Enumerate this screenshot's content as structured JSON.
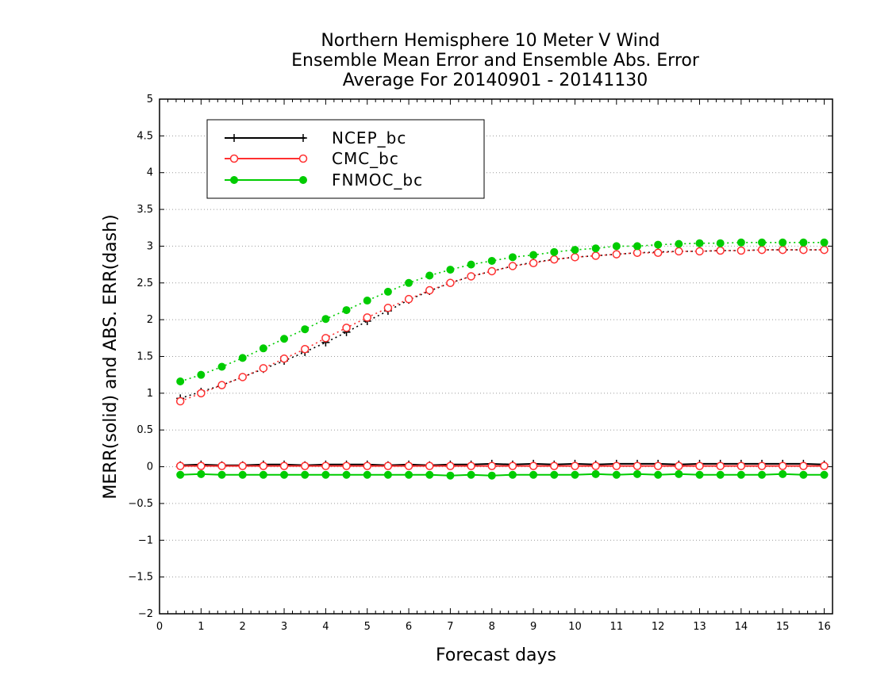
{
  "chart_data": {
    "type": "line",
    "title_lines": [
      "Northern Hemisphere 10 Meter V Wind",
      "Ensemble Mean Error and Ensemble Abs. Error",
      "Average For 20140901 - 20141130"
    ],
    "xlabel": "Forecast days",
    "ylabel": "MERR(solid) and ABS. ERR(dash)",
    "xlim": [
      0,
      16.2
    ],
    "ylim": [
      -2,
      5
    ],
    "x_ticks": [
      "0",
      "1",
      "2",
      "3",
      "4",
      "5",
      "6",
      "7",
      "8",
      "9",
      "10",
      "11",
      "12",
      "13",
      "14",
      "15",
      "16"
    ],
    "y_ticks": [
      "5",
      "4.5",
      "4",
      "3.5",
      "3",
      "2.5",
      "2",
      "1.5",
      "1",
      "0.5",
      "0",
      "-0.5",
      "-1",
      "-1.5",
      "-2"
    ],
    "grid": "horizontal dotted",
    "legend_position": "top-left",
    "x": [
      0.5,
      1,
      1.5,
      2,
      2.5,
      3,
      3.5,
      4,
      4.5,
      5,
      5.5,
      6,
      6.5,
      7,
      7.5,
      8,
      8.5,
      9,
      9.5,
      10,
      10.5,
      11,
      11.5,
      12,
      12.5,
      13,
      13.5,
      14,
      14.5,
      15,
      15.5,
      16
    ],
    "series": [
      {
        "name": "NCEP_bc",
        "color": "#000000",
        "marker": "plus",
        "merr": [
          0.02,
          0.03,
          0.02,
          0.02,
          0.03,
          0.03,
          0.02,
          0.03,
          0.03,
          0.03,
          0.02,
          0.03,
          0.02,
          0.03,
          0.03,
          0.04,
          0.03,
          0.04,
          0.03,
          0.04,
          0.03,
          0.04,
          0.04,
          0.04,
          0.03,
          0.04,
          0.04,
          0.04,
          0.04,
          0.04,
          0.04,
          0.03
        ],
        "abs_err": [
          0.93,
          1.02,
          1.11,
          1.22,
          1.33,
          1.44,
          1.56,
          1.69,
          1.83,
          1.98,
          2.12,
          2.27,
          2.39,
          2.5,
          2.59,
          2.66,
          2.73,
          2.78,
          2.82,
          2.85,
          2.87,
          2.89,
          2.91,
          2.92,
          2.93,
          2.93,
          2.94,
          2.94,
          2.95,
          2.95,
          2.95,
          2.95
        ]
      },
      {
        "name": "CMC_bc",
        "color": "#ff3030",
        "marker": "open-circle",
        "merr": [
          0.01,
          0.01,
          0.01,
          0.01,
          0.01,
          0.01,
          0.01,
          0.01,
          0.01,
          0.01,
          0.01,
          0.01,
          0.01,
          0.01,
          0.01,
          0.01,
          0.01,
          0.01,
          0.01,
          0.01,
          0.01,
          0.01,
          0.01,
          0.01,
          0.01,
          0.01,
          0.01,
          0.01,
          0.01,
          0.01,
          0.01,
          0.01
        ],
        "abs_err": [
          0.89,
          1,
          1.11,
          1.22,
          1.34,
          1.47,
          1.6,
          1.75,
          1.89,
          2.03,
          2.16,
          2.28,
          2.4,
          2.5,
          2.59,
          2.66,
          2.73,
          2.77,
          2.82,
          2.85,
          2.87,
          2.89,
          2.91,
          2.91,
          2.93,
          2.93,
          2.94,
          2.94,
          2.95,
          2.95,
          2.95,
          2.95
        ]
      },
      {
        "name": "FNMOC_bc",
        "color": "#00cc00",
        "marker": "filled-circle",
        "merr": [
          -0.11,
          -0.1,
          -0.11,
          -0.11,
          -0.11,
          -0.11,
          -0.11,
          -0.11,
          -0.11,
          -0.11,
          -0.11,
          -0.11,
          -0.11,
          -0.12,
          -0.11,
          -0.12,
          -0.11,
          -0.11,
          -0.11,
          -0.11,
          -0.1,
          -0.11,
          -0.1,
          -0.11,
          -0.1,
          -0.11,
          -0.11,
          -0.11,
          -0.11,
          -0.1,
          -0.11,
          -0.11
        ],
        "abs_err": [
          1.16,
          1.25,
          1.36,
          1.48,
          1.61,
          1.74,
          1.87,
          2.01,
          2.13,
          2.26,
          2.38,
          2.5,
          2.6,
          2.68,
          2.75,
          2.8,
          2.85,
          2.88,
          2.92,
          2.95,
          2.97,
          3,
          3,
          3.02,
          3.03,
          3.04,
          3.04,
          3.05,
          3.05,
          3.05,
          3.05,
          3.05
        ]
      }
    ]
  }
}
